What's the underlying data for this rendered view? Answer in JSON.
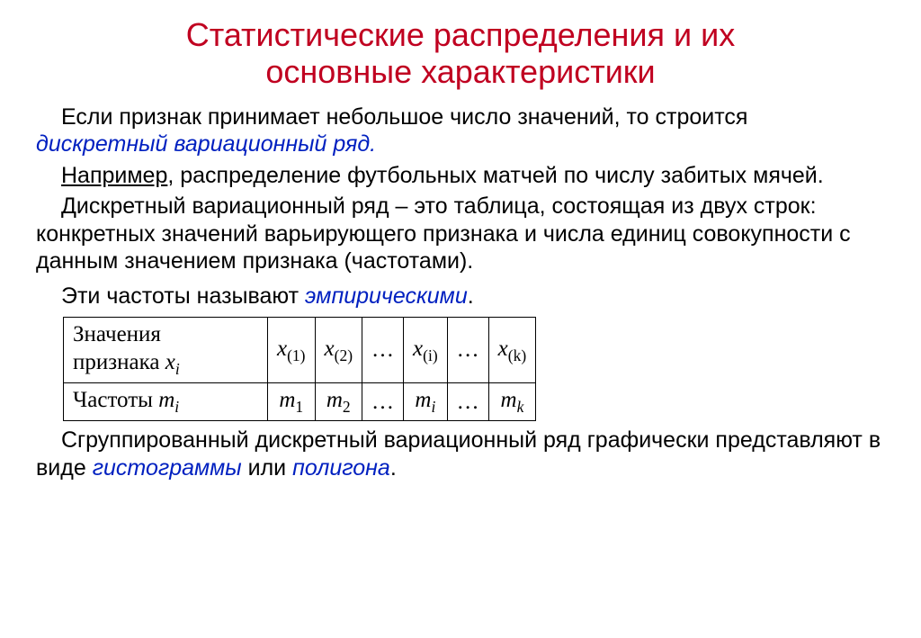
{
  "title_line1": "Статистические распределения и их",
  "title_line2": "основные характеристики",
  "para1_a": "Если признак принимает небольшое число значений, то строится ",
  "para1_blue": "дискретный вариационный ряд.",
  "para2_a": "Например",
  "para2_b": ", распределение футбольных матчей по числу забитых мячей.",
  "para3": "Дискретный вариационный ряд – это таблица, состоящая из двух строк: конкретных значений варьирующего признака и числа единиц совокупности с данным значением признака (частотами).",
  "empir_a": "Эти частоты называют ",
  "empir_blue": "эмпирическими",
  "empir_c": ".",
  "table": {
    "row1_label_a": "Значения признака  ",
    "row1_label_var": "x",
    "row1_label_sub": "i",
    "row2_label_a": "Частоты  ",
    "row2_label_var": "m",
    "row2_label_sub": "i",
    "cells_x": [
      "x",
      "x",
      "…",
      "x",
      "…",
      "x"
    ],
    "subs_x": [
      "(1)",
      "(2)",
      "",
      "(i)",
      "",
      "(k)"
    ],
    "cells_m": [
      "m",
      "m",
      "…",
      "m",
      "…",
      "m"
    ],
    "subs_m": [
      "1",
      "2",
      "",
      "i",
      "",
      "k"
    ],
    "border_color": "#000000",
    "cell_fontsize": 25
  },
  "conclusion_a": "Сгруппированный дискретный вариационный ряд графически представляют в виде ",
  "conclusion_blue1": "гистограммы",
  "conclusion_mid": " или ",
  "conclusion_blue2": "полигона",
  "conclusion_end": ".",
  "colors": {
    "title": "#c00020",
    "accent": "#0020c0",
    "text": "#000000",
    "background": "#ffffff"
  },
  "typography": {
    "title_fontsize": 36,
    "body_fontsize": 25,
    "font_family_body": "Arial",
    "font_family_math": "Times New Roman"
  }
}
